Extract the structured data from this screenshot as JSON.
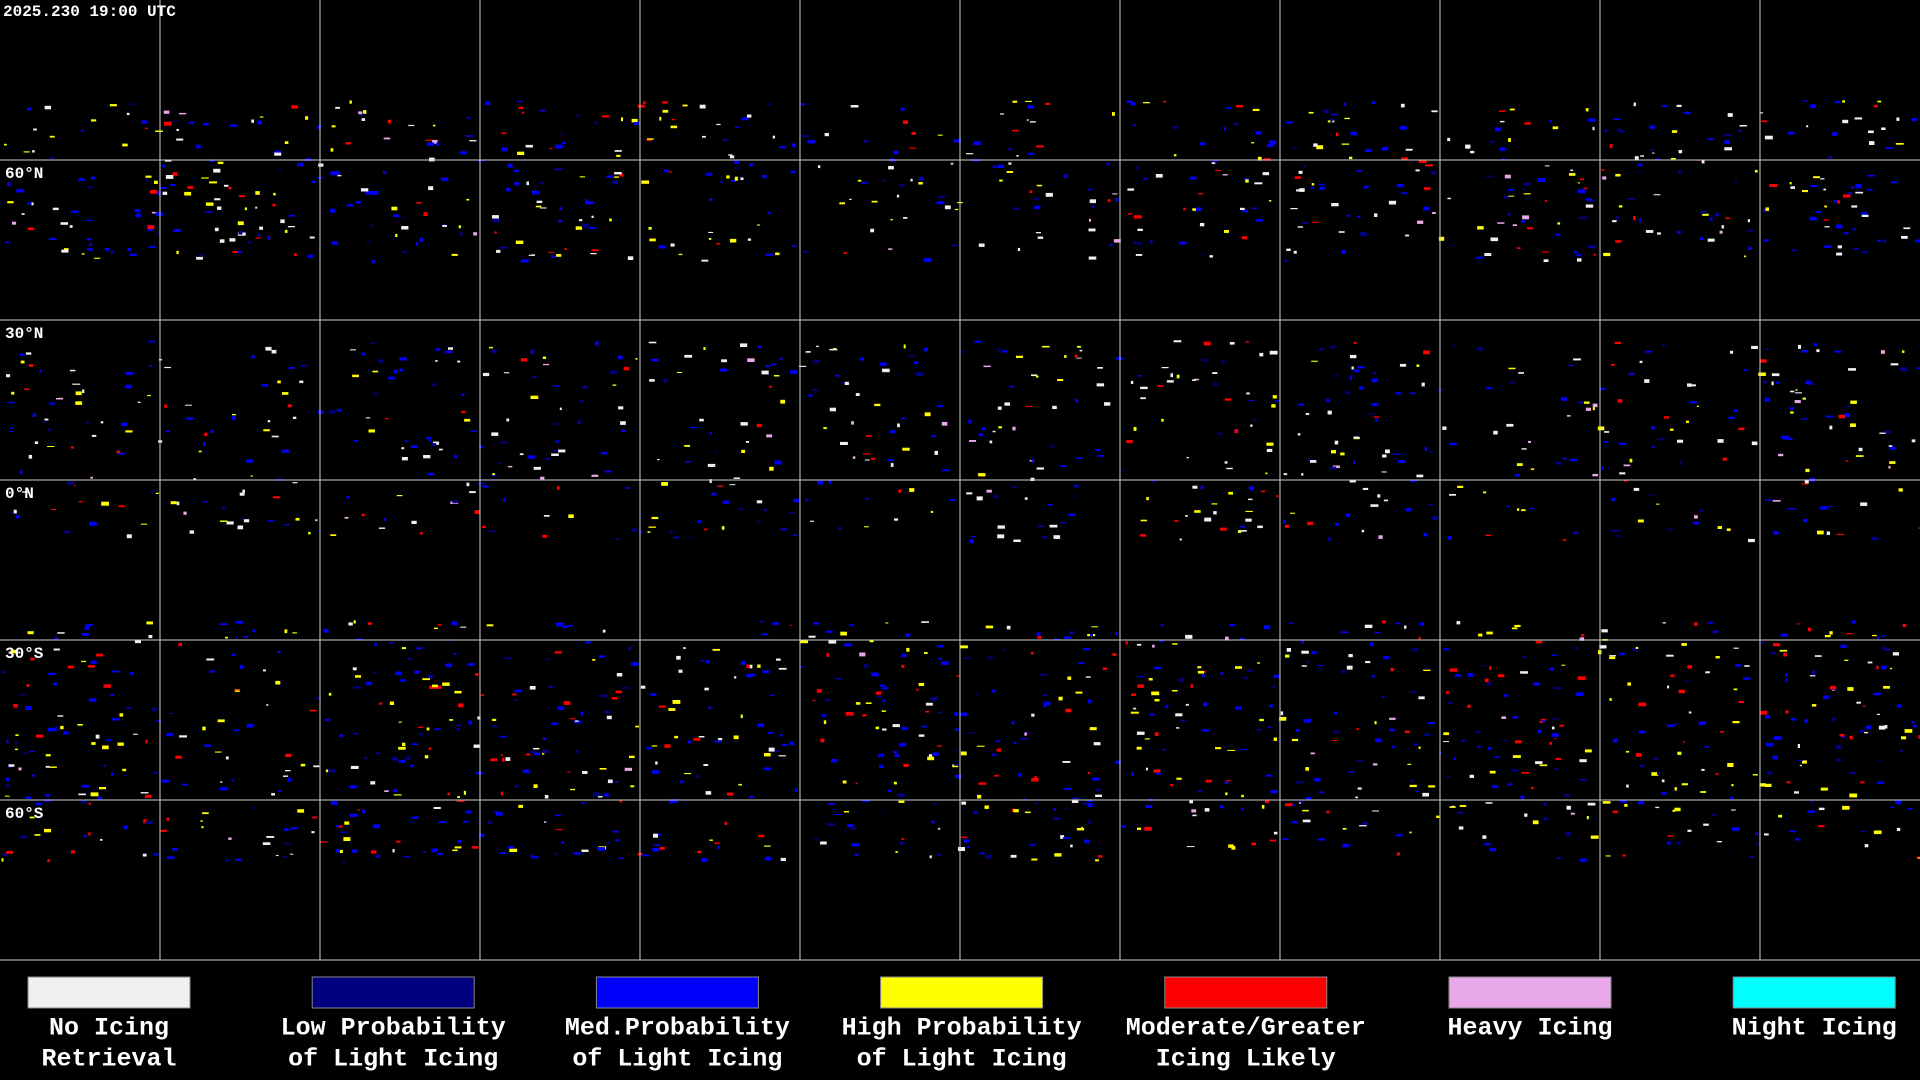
{
  "header": {
    "timestamp": "2025.230 19:00 UTC"
  },
  "map": {
    "latitude_labels": [
      "60°N",
      "30°N",
      "0°N",
      "30°S",
      "60°S"
    ]
  },
  "legend": {
    "items": [
      {
        "label_lines": [
          "No Icing",
          "Retrieval"
        ],
        "color": "#f0f0f0"
      },
      {
        "label_lines": [
          "Low Probability",
          "of Light Icing"
        ],
        "color": "#000080"
      },
      {
        "label_lines": [
          "Med.Probability",
          "of Light Icing"
        ],
        "color": "#0000ff"
      },
      {
        "label_lines": [
          "High Probability",
          "of Light Icing"
        ],
        "color": "#ffff00"
      },
      {
        "label_lines": [
          "Moderate/Greater",
          "Icing Likely"
        ],
        "color": "#ff0000"
      },
      {
        "label_lines": [
          "Heavy Icing"
        ],
        "color": "#e8a8e8"
      },
      {
        "label_lines": [
          "Night Icing"
        ],
        "color": "#00ffff"
      }
    ]
  }
}
